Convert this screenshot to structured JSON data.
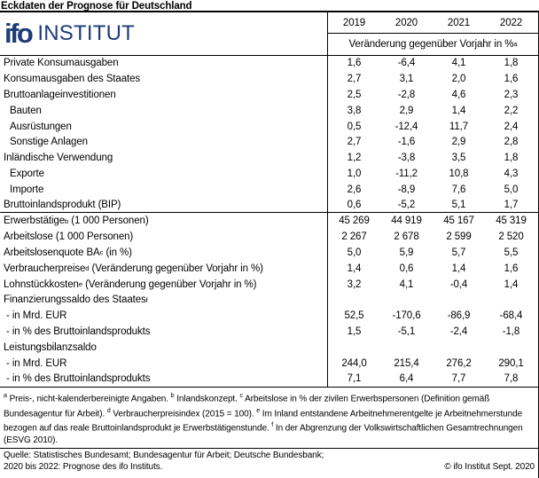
{
  "title": "Eckdaten der Prognose für Deutschland",
  "logo": {
    "mark": "ifo",
    "name": "INSTITUT",
    "color": "#1d3c78"
  },
  "header": {
    "years": [
      "2019",
      "2020",
      "2021",
      "2022"
    ],
    "unit_label": "Veränderung gegenüber Vorjahr in %",
    "unit_sup": "a"
  },
  "table": {
    "rows": [
      {
        "label": "Private Konsumausgaben",
        "values": [
          "1,6",
          "-6,4",
          "4,1",
          "1,8"
        ]
      },
      {
        "label": "Konsumausgaben des Staates",
        "values": [
          "2,7",
          "3,1",
          "2,0",
          "1,6"
        ]
      },
      {
        "label": "Bruttoanlageinvestitionen",
        "values": [
          "2,5",
          "-2,8",
          "4,6",
          "2,3"
        ]
      },
      {
        "label": "Bauten",
        "indent": 1,
        "values": [
          "3,8",
          "2,9",
          "1,4",
          "2,2"
        ]
      },
      {
        "label": "Ausrüstungen",
        "indent": 1,
        "values": [
          "0,5",
          "-12,4",
          "11,7",
          "2,4"
        ]
      },
      {
        "label": "Sonstige Anlagen",
        "indent": 1,
        "values": [
          "2,7",
          "-1,6",
          "2,9",
          "2,8"
        ]
      },
      {
        "label": "Inländische Verwendung",
        "values": [
          "1,2",
          "-3,8",
          "3,5",
          "1,8"
        ]
      },
      {
        "label": "Exporte",
        "indent": 1,
        "values": [
          "1,0",
          "-11,2",
          "10,8",
          "4,3"
        ]
      },
      {
        "label": "Importe",
        "indent": 1,
        "values": [
          "2,6",
          "-8,9",
          "7,6",
          "5,0"
        ]
      },
      {
        "label": "Bruttoinlandsprodukt (BIP)",
        "rule_below": true,
        "values": [
          "0,6",
          "-5,2",
          "5,1",
          "1,7"
        ]
      },
      {
        "label": "Erwerbstätige",
        "sup": "b",
        "label_rest": " (1 000 Personen)",
        "values": [
          "45 269",
          "44 919",
          "45 167",
          "45 319"
        ]
      },
      {
        "label": "Arbeitslose (1 000 Personen)",
        "values": [
          "2 267",
          "2 678",
          "2 599",
          "2 520"
        ]
      },
      {
        "label": "Arbeitslosenquote BA",
        "sup": "c",
        "label_rest": " (in %)",
        "values": [
          "5,0",
          "5,9",
          "5,7",
          "5,5"
        ]
      },
      {
        "label": "Verbraucherpreise",
        "sup": "d",
        "label_rest": " (Veränderung gegenüber Vorjahr in %)",
        "values": [
          "1,4",
          "0,6",
          "1,4",
          "1,6"
        ]
      },
      {
        "label": "Lohnstückkosten",
        "sup": "e",
        "label_rest": " (Veränderung gegenüber Vorjahr in %)",
        "values": [
          "3,2",
          "4,1",
          "-0,4",
          "1,4"
        ]
      },
      {
        "label": "Finanzierungssaldo des Staates",
        "sup": "f",
        "values": [
          "",
          "",
          "",
          ""
        ]
      },
      {
        "label": "- in Mrd. EUR",
        "indent": 2,
        "values": [
          "52,5",
          "-170,6",
          "-86,9",
          "-68,4"
        ]
      },
      {
        "label": "- in % des Bruttoinlandsprodukts",
        "indent": 2,
        "values": [
          "1,5",
          "-5,1",
          "-2,4",
          "-1,8"
        ]
      },
      {
        "label": "Leistungsbilanzsaldo",
        "values": [
          "",
          "",
          "",
          ""
        ]
      },
      {
        "label": "- in Mrd. EUR",
        "indent": 2,
        "values": [
          "244,0",
          "215,4",
          "276,2",
          "290,1"
        ]
      },
      {
        "label": "- in % des Bruttoinlandsprodukts",
        "indent": 2,
        "values": [
          "7,1",
          "6,4",
          "7,7",
          "7,8"
        ]
      }
    ]
  },
  "footnotes": [
    {
      "sup": "a",
      "text": "Preis-, nicht-kalenderbereinigte Angaben."
    },
    {
      "sup": "b",
      "text": "Inlandskonzept."
    },
    {
      "sup": "c",
      "text": "Arbeitslose in % der zivilen Erwerbspersonen (Definition gemäß Bundesagentur für Arbeit)."
    },
    {
      "sup": "d",
      "text": "Verbraucherpreisindex (2015 = 100)."
    },
    {
      "sup": "e",
      "text": "Im Inland entstandene Arbeitnehmerentgelte je Arbeitnehmerstunde bezogen auf das reale Bruttoinlandsprodukt je Erwerbstätigenstunde."
    },
    {
      "sup": "f",
      "text": "In der Abgrenzung der Volkswirtschaftlichen Gesamtrechnungen (ESVG 2010)."
    }
  ],
  "source": {
    "line1": "Quelle: Statistisches Bundesamt; Bundesagentur für Arbeit; Deutsche Bundesbank;",
    "line2": "2020 bis 2022: Prognose des ifo Instituts.",
    "copyright": "© ifo Institut Sept. 2020"
  }
}
